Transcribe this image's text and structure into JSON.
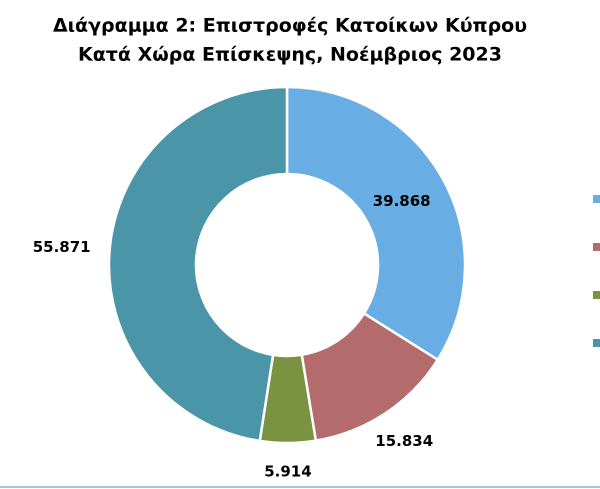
{
  "chart_data": {
    "type": "donut",
    "title": [
      "Διάγραμμα 2: Επιστροφές Κατοίκων Κύπρου",
      "Κατά Χώρα Επίσκεψης, Νοέμβριος 2023"
    ],
    "values": [
      39868,
      15834,
      5914,
      55871
    ],
    "value_labels": [
      "39.868",
      "15.834",
      "5.914",
      "55.871"
    ],
    "colors": [
      "#69ade5",
      "#b36c6b",
      "#7a9340",
      "#4a96a8"
    ],
    "legend": "right"
  }
}
